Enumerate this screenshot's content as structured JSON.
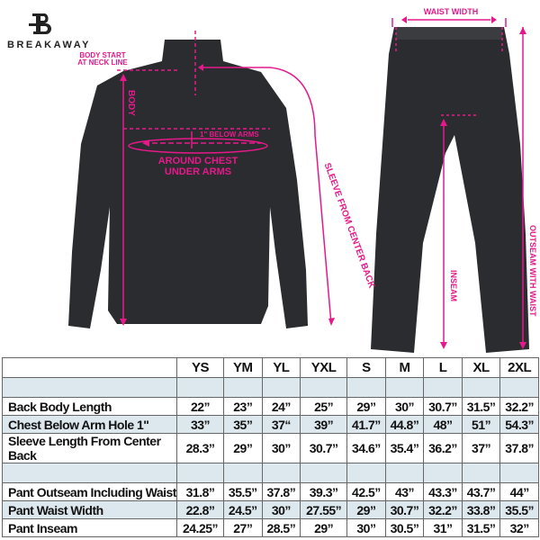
{
  "brand": {
    "name": "BREAKAWAY"
  },
  "annotations": {
    "body_start": "BODY START AT NECK LINE",
    "body": "BODY",
    "below_arms": "1\" BELOW ARMS",
    "chest": "AROUND CHEST UNDER ARMS",
    "sleeve": "SLEEVE FROM CENTER BACK",
    "waist_width": "WAIST WIDTH",
    "inseam": "INSEAM",
    "outseam": "OUTSEAM WITH WAIST"
  },
  "colors": {
    "accent": "#e6198a",
    "garment": "#2a2c30",
    "band": "#dde7ee"
  },
  "table": {
    "sizes": [
      "YS",
      "YM",
      "YL",
      "YXL",
      "S",
      "M",
      "L",
      "XL",
      "2XL"
    ],
    "jacket_rows": [
      {
        "label": "Back Body Length",
        "values": [
          "22”",
          "23”",
          "24”",
          "25”",
          "29”",
          "30”",
          "30.7”",
          "31.5”",
          "32.2”"
        ]
      },
      {
        "label": "Chest Below Arm Hole 1\"",
        "values": [
          "33”",
          "35”",
          "37“",
          "39”",
          "41.7”",
          "44.8”",
          "48”",
          "51”",
          "54.3”"
        ]
      },
      {
        "label": "Sleeve Length From Center Back",
        "values": [
          "28.3”",
          "29”",
          "30”",
          "30.7”",
          "34.6”",
          "35.4”",
          "36.2”",
          "37”",
          "37.8”"
        ]
      }
    ],
    "pant_rows": [
      {
        "label": "Pant Outseam Including Waist",
        "values": [
          "31.8”",
          "35.5”",
          "37.8”",
          "39.3”",
          "42.5”",
          "43”",
          "43.3”",
          "43.7”",
          "44”"
        ]
      },
      {
        "label": "Pant Waist Width",
        "values": [
          "22.8”",
          "24.5”",
          "30”",
          "27.55”",
          "29”",
          "30.7”",
          "32.2”",
          "33.8”",
          "35.5”"
        ]
      },
      {
        "label": "Pant Inseam",
        "values": [
          "24.25”",
          "27”",
          "28.5”",
          "29”",
          "30”",
          "30.5”",
          "31”",
          "31.5”",
          "32”"
        ]
      }
    ]
  }
}
